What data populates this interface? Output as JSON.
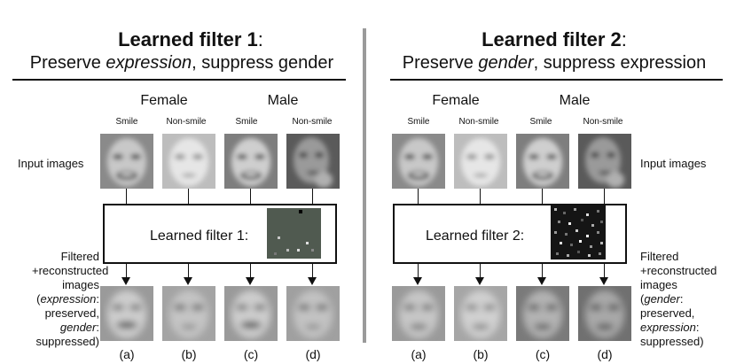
{
  "panel1": {
    "title_bold": "Learned filter 1",
    "title_rest": ":",
    "subtitle_pre": "Preserve ",
    "subtitle_em": "expression",
    "subtitle_post": ", suppress gender",
    "group_female": "Female",
    "group_male": "Male",
    "classes": [
      "Smile",
      "Non-smile",
      "Smile",
      "Non-smile"
    ],
    "input_label": "Input images",
    "filter_label": "Learned filter 1:",
    "output_label": {
      "l1": "Filtered",
      "l2": "+reconstructed",
      "l3": "images",
      "l4_em": "expression",
      "l4_rest": ":",
      "l5": "preserved,",
      "l6_em": "gender",
      "l6_rest": ":",
      "l7": "suppressed)"
    },
    "panel_labels": [
      "(a)",
      "(b)",
      "(c)",
      "(d)"
    ]
  },
  "panel2": {
    "title_bold": "Learned filter 2",
    "title_rest": ":",
    "subtitle_pre": "Preserve ",
    "subtitle_em": "gender",
    "subtitle_post": ", suppress expression",
    "group_female": "Female",
    "group_male": "Male",
    "classes": [
      "Smile",
      "Non-smile",
      "Smile",
      "Non-smile"
    ],
    "input_label": "Input images",
    "filter_label": "Learned filter 2:",
    "output_label": {
      "l1": "Filtered",
      "l2": "+reconstructed",
      "l3": "images",
      "l4_em": "gender",
      "l4_rest": ":",
      "l5": "preserved,",
      "l6_em": "expression",
      "l6_rest": ":",
      "l7": "suppressed)"
    },
    "panel_labels": [
      "(a)",
      "(b)",
      "(c)",
      "(d)"
    ]
  },
  "colors": {
    "divider": "#9a9a9a",
    "filter1_bg": "#505a50",
    "filter2_bg": "#151515"
  }
}
